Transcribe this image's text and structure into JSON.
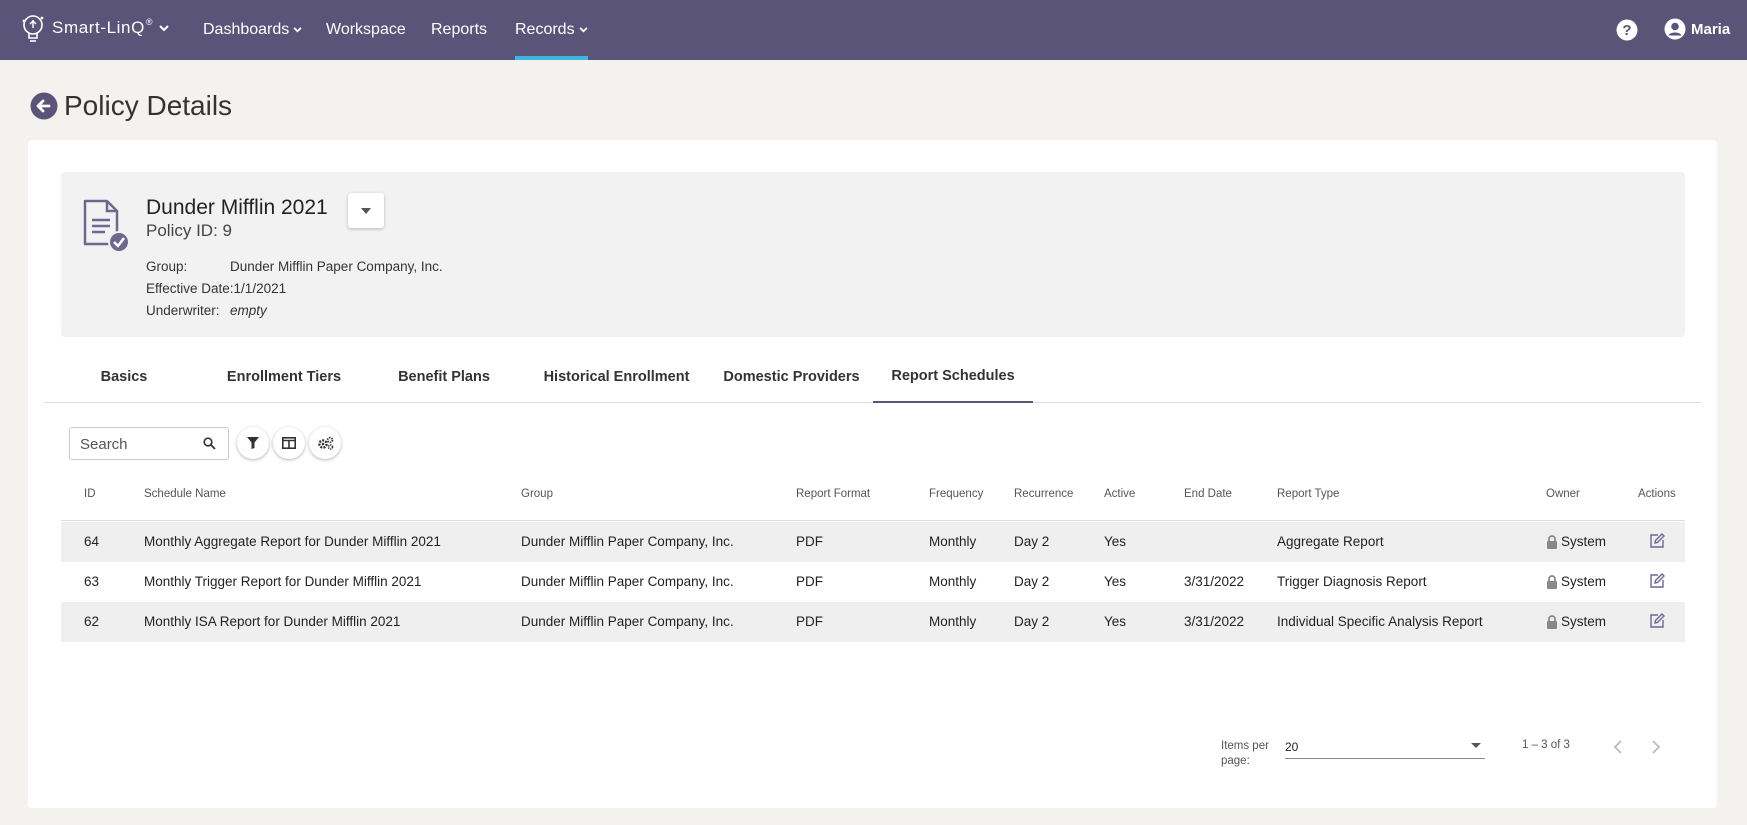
{
  "nav": {
    "brand": "Smart-LinQ",
    "brand_mark": "®",
    "items": [
      {
        "label": "Dashboards",
        "has_dropdown": true
      },
      {
        "label": "Workspace",
        "has_dropdown": false
      },
      {
        "label": "Reports",
        "has_dropdown": false
      },
      {
        "label": "Records",
        "has_dropdown": true,
        "active": true
      }
    ],
    "help_icon": "question-circle-icon",
    "user": {
      "name": "Maria",
      "icon": "user-circle-icon"
    },
    "colors": {
      "bar": "#5b5479",
      "active_underline": "#3fb6e0"
    }
  },
  "page": {
    "title": "Policy Details",
    "back_icon": "arrow-left-circle-icon"
  },
  "policy": {
    "name": "Dunder Mifflin 2021",
    "id_text": "Policy ID: 9",
    "icon": "document-check-icon",
    "fields": [
      {
        "label": "Group:",
        "value": "Dunder Mifflin Paper Company, Inc.",
        "italic": false
      },
      {
        "label": "Effective Date:",
        "value": "1/1/2021",
        "italic": false
      },
      {
        "label": "Underwriter:",
        "value": "empty",
        "italic": true
      }
    ]
  },
  "tabs": [
    {
      "label": "Basics"
    },
    {
      "label": "Enrollment Tiers"
    },
    {
      "label": "Benefit Plans"
    },
    {
      "label": "Historical Enrollment"
    },
    {
      "label": "Domestic Providers"
    },
    {
      "label": "Report Schedules",
      "active": true
    }
  ],
  "toolbar": {
    "search_placeholder": "Search",
    "icons": [
      "filter-icon",
      "columns-icon",
      "settings-gears-icon"
    ]
  },
  "table": {
    "columns": [
      "ID",
      "Schedule Name",
      "Group",
      "Report Format",
      "Frequency",
      "Recurrence",
      "Active",
      "End Date",
      "Report Type",
      "Owner",
      "Actions"
    ],
    "rows": [
      {
        "id": "64",
        "name": "Monthly Aggregate Report for Dunder Mifflin 2021",
        "group": "Dunder Mifflin Paper Company, Inc.",
        "format": "PDF",
        "frequency": "Monthly",
        "recurrence": "Day 2",
        "active": "Yes",
        "end_date": "",
        "type": "Aggregate Report",
        "owner": "System"
      },
      {
        "id": "63",
        "name": "Monthly Trigger Report for Dunder Mifflin 2021",
        "group": "Dunder Mifflin Paper Company, Inc.",
        "format": "PDF",
        "frequency": "Monthly",
        "recurrence": "Day 2",
        "active": "Yes",
        "end_date": "3/31/2022",
        "type": "Trigger Diagnosis Report",
        "owner": "System"
      },
      {
        "id": "62",
        "name": "Monthly ISA Report for Dunder Mifflin 2021",
        "group": "Dunder Mifflin Paper Company, Inc.",
        "format": "PDF",
        "frequency": "Monthly",
        "recurrence": "Day 2",
        "active": "Yes",
        "end_date": "3/31/2022",
        "type": "Individual Specific Analysis Report",
        "owner": "System"
      }
    ]
  },
  "pagination": {
    "items_per_page_label": "Items per page:",
    "items_per_page_value": "20",
    "range_text": "1 – 3 of 3"
  }
}
